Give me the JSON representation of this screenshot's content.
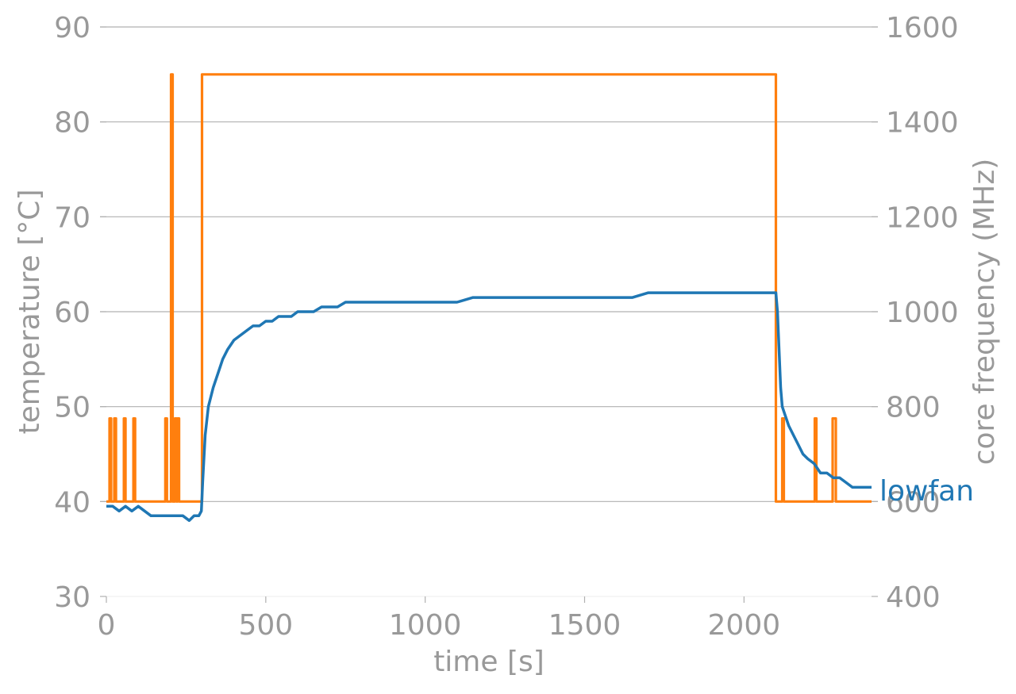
{
  "chart_data": {
    "type": "line",
    "title": "",
    "xlabel": "time [s]",
    "ylabel_left": "temperature [°C]",
    "ylabel_right": "core frequency (MHz)",
    "xlim": [
      0,
      2400
    ],
    "ylim_left": [
      30,
      90
    ],
    "ylim_right": [
      400,
      1600
    ],
    "x_ticks": [
      0,
      500,
      1000,
      1500,
      2000
    ],
    "y_ticks_left": [
      30,
      40,
      50,
      60,
      70,
      80,
      90
    ],
    "y_ticks_right": [
      400,
      600,
      800,
      1000,
      1200,
      1400,
      1600
    ],
    "grid": "horizontal",
    "colors": {
      "temperature": "#1f77b4",
      "frequency": "#ff7f0e",
      "grid": "#b0b0b0",
      "text": "#999999"
    },
    "series": [
      {
        "name": "lowfan",
        "axis": "left",
        "x": [
          0,
          20,
          40,
          60,
          80,
          100,
          120,
          140,
          160,
          180,
          200,
          220,
          240,
          260,
          275,
          290,
          298,
          302,
          310,
          320,
          335,
          350,
          365,
          380,
          400,
          420,
          440,
          460,
          480,
          500,
          520,
          540,
          560,
          580,
          600,
          625,
          650,
          675,
          700,
          725,
          750,
          800,
          850,
          900,
          950,
          1000,
          1050,
          1100,
          1150,
          1200,
          1250,
          1300,
          1350,
          1400,
          1450,
          1500,
          1550,
          1600,
          1650,
          1700,
          1750,
          1800,
          1850,
          1900,
          1950,
          2000,
          2050,
          2080,
          2100,
          2105,
          2110,
          2115,
          2120,
          2130,
          2140,
          2155,
          2170,
          2185,
          2200,
          2220,
          2240,
          2260,
          2280,
          2300,
          2320,
          2340,
          2360,
          2380,
          2400
        ],
        "values": [
          39.5,
          39.5,
          39,
          39.5,
          39,
          39.5,
          39,
          38.5,
          38.5,
          38.5,
          38.5,
          38.5,
          38.5,
          38,
          38.5,
          38.5,
          39,
          42,
          47,
          50,
          52,
          53.5,
          55,
          56,
          57,
          57.5,
          58,
          58.5,
          58.5,
          59,
          59,
          59.5,
          59.5,
          59.5,
          60,
          60,
          60,
          60.5,
          60.5,
          60.5,
          61,
          61,
          61,
          61,
          61,
          61,
          61,
          61,
          61.5,
          61.5,
          61.5,
          61.5,
          61.5,
          61.5,
          61.5,
          61.5,
          61.5,
          61.5,
          61.5,
          62,
          62,
          62,
          62,
          62,
          62,
          62,
          62,
          62,
          62,
          60,
          56,
          52,
          50,
          49,
          48,
          47,
          46,
          45,
          44.5,
          44,
          43,
          43,
          42.5,
          42.5,
          42,
          41.5,
          41.5,
          41.5,
          41.5
        ]
      },
      {
        "name": "",
        "axis": "right",
        "x": [
          0,
          10,
          10,
          15,
          15,
          25,
          25,
          30,
          30,
          55,
          55,
          60,
          60,
          85,
          85,
          90,
          90,
          185,
          185,
          190,
          190,
          203,
          203,
          208,
          208,
          215,
          215,
          220,
          220,
          223,
          223,
          228,
          228,
          300,
          300,
          2100,
          2100,
          2120,
          2120,
          2125,
          2125,
          2222,
          2222,
          2227,
          2227,
          2278,
          2278,
          2288,
          2288,
          2400
        ],
        "values": [
          600,
          600,
          775,
          775,
          600,
          600,
          775,
          775,
          600,
          600,
          775,
          775,
          600,
          600,
          775,
          775,
          600,
          600,
          775,
          775,
          600,
          600,
          1500,
          1500,
          600,
          600,
          775,
          775,
          600,
          600,
          775,
          775,
          600,
          600,
          1500,
          1500,
          600,
          600,
          775,
          775,
          600,
          600,
          775,
          775,
          600,
          600,
          775,
          775,
          600,
          600
        ]
      }
    ]
  }
}
